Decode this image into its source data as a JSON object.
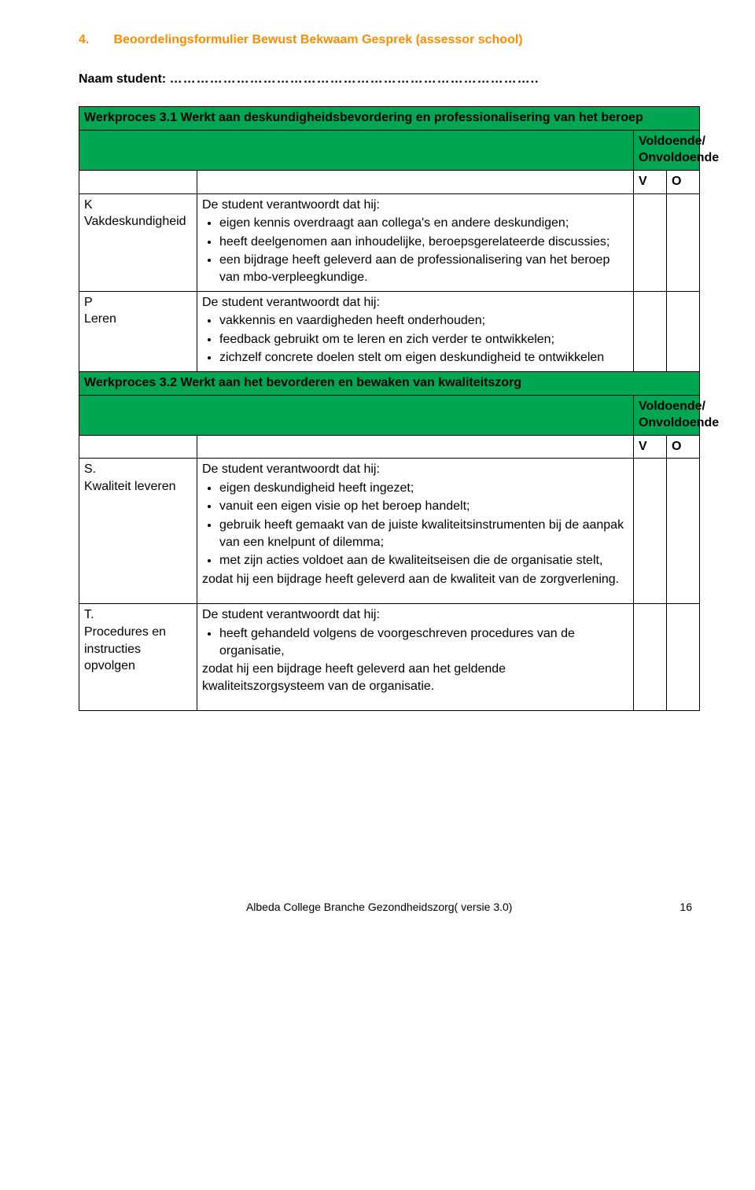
{
  "colors": {
    "accent_orange": "#ff8c00",
    "header_green": "#00a651",
    "border": "#000000",
    "text": "#000000",
    "background": "#ffffff"
  },
  "section": {
    "number": "4.",
    "title": "Beoordelingsformulier Bewust Bekwaam Gesprek (assessor school)"
  },
  "naam_label": "Naam student:",
  "naam_dots": "………………………………………………………………………..",
  "wp31": {
    "title": "Werkproces 3.1 Werkt aan deskundigheidsbevordering en professionalisering van het beroep",
    "vo_label": "Voldoende/ Onvoldoende",
    "v": "V",
    "o": "O",
    "rowK": {
      "left_line1": "K",
      "left_line2": "Vakdeskundigheid",
      "intro": "De student verantwoordt dat hij:",
      "items": [
        "eigen kennis overdraagt aan collega's en andere deskundigen;",
        "heeft deelgenomen aan inhoudelijke, beroepsgerelateerde discussies;",
        "een bijdrage heeft geleverd aan de professionalisering van het beroep van mbo-verpleegkundige."
      ]
    },
    "rowP": {
      "left_line1": "P",
      "left_line2": "Leren",
      "intro": "De student verantwoordt dat hij:",
      "items": [
        "vakkennis en vaardigheden heeft onderhouden;",
        "feedback gebruikt om te leren en zich verder te ontwikkelen;",
        "zichzelf concrete doelen stelt om eigen deskundigheid te ontwikkelen"
      ]
    }
  },
  "wp32": {
    "title": "Werkproces 3.2  Werkt aan het bevorderen en bewaken van kwaliteitszorg",
    "vo_label": "Voldoende/ Onvoldoende",
    "v": "V",
    "o": "O",
    "rowS": {
      "left_line1": "S.",
      "left_line2": "Kwaliteit leveren",
      "intro": "De student verantwoordt dat hij:",
      "items": [
        "eigen deskundigheid heeft ingezet;",
        "vanuit een eigen visie op het beroep handelt;",
        "gebruik heeft gemaakt van de juiste kwaliteitsinstrumenten bij de aanpak van een knelpunt of dilemma;",
        "met zijn acties voldoet aan de kwaliteitseisen die de organisatie stelt,"
      ],
      "zodat": "zodat hij een bijdrage heeft geleverd aan de kwaliteit van de zorgverlening."
    },
    "rowT": {
      "left_line1": "T.",
      "left_line2": "Procedures en instructies opvolgen",
      "intro": "De student verantwoordt dat hij:",
      "items": [
        "heeft gehandeld volgens de voorgeschreven procedures van de organisatie,"
      ],
      "zodat": "zodat hij een bijdrage heeft geleverd aan het geldende kwaliteitszorgsysteem van de organisatie."
    }
  },
  "footer": {
    "text": "Albeda College Branche Gezondheidszorg( versie 3.0)",
    "page": "16"
  }
}
